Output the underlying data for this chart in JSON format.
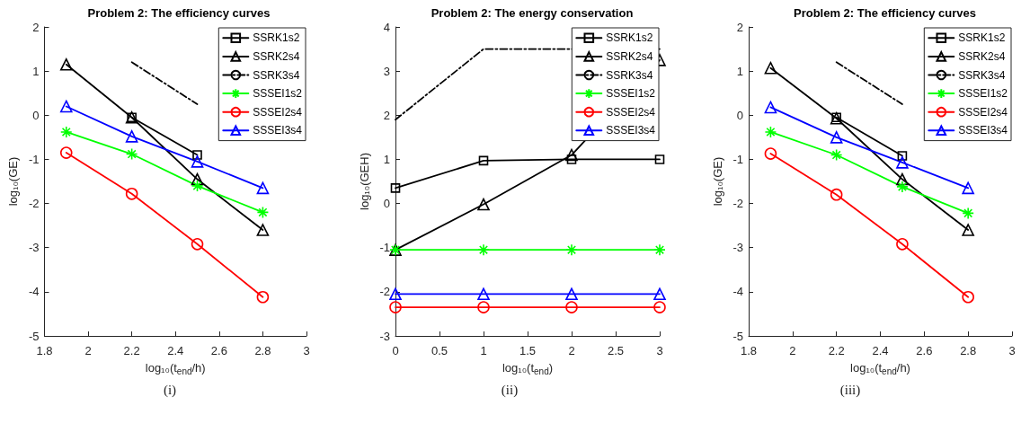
{
  "chart_data": [
    {
      "type": "line",
      "title": "Problem 2: The efficiency curves",
      "xlabel": "log₁₀(t$_{end}$/h)",
      "ylabel": "log₁₀(GE)",
      "x": [
        1.9,
        2.2,
        2.5,
        2.8
      ],
      "xlim": [
        1.8,
        3
      ],
      "xticks": [
        1.8,
        2,
        2.2,
        2.4,
        2.6,
        2.8,
        3
      ],
      "ylim": [
        -5,
        2
      ],
      "yticks": [
        -5,
        -4,
        -3,
        -2,
        -1,
        0,
        1,
        2
      ],
      "grid": false,
      "legend": "top right",
      "annotations": [
        "(i)"
      ],
      "series": [
        {
          "name": "SSRK1s2",
          "color": "#000000",
          "marker": "square",
          "line_style": "solid",
          "values": [
            null,
            -0.05,
            -0.9,
            null
          ]
        },
        {
          "name": "SSRK2s4",
          "color": "#000000",
          "marker": "triangle",
          "line_style": "solid",
          "values": [
            1.15,
            -0.05,
            -1.45,
            -2.6
          ]
        },
        {
          "name": "SSRK3s4",
          "color": "#000000",
          "marker": "none",
          "line_style": "dashed",
          "values": [
            null,
            1.2,
            0.25,
            null
          ]
        },
        {
          "name": "SSSEI1s2",
          "color": "#00ff00",
          "marker": "cross",
          "line_style": "solid",
          "values": [
            -0.38,
            -0.88,
            -1.6,
            -2.2
          ]
        },
        {
          "name": "SSSEI2s4",
          "color": "#ff0000",
          "marker": "circle",
          "line_style": "solid",
          "values": [
            -0.85,
            -1.78,
            -2.92,
            -4.12
          ]
        },
        {
          "name": "SSSEI3s4",
          "color": "#0000ff",
          "marker": "triangle",
          "line_style": "solid",
          "values": [
            0.2,
            -0.48,
            -1.05,
            -1.65
          ]
        }
      ]
    },
    {
      "type": "line",
      "title": "Problem 2: The energy conservation",
      "xlabel": "log₁₀(t$_{end}$)",
      "ylabel": "log₁₀(GEH)",
      "x": [
        0,
        1,
        2,
        3
      ],
      "xlim": [
        0,
        3
      ],
      "xticks": [
        0,
        0.5,
        1,
        1.5,
        2,
        2.5,
        3
      ],
      "ylim": [
        -3,
        4
      ],
      "yticks": [
        -3,
        -2,
        -1,
        0,
        1,
        2,
        3,
        4
      ],
      "grid": false,
      "legend": "top right",
      "annotations": [
        "(ii)"
      ],
      "series": [
        {
          "name": "SSRK1s2",
          "color": "#000000",
          "marker": "square",
          "line_style": "solid",
          "values": [
            0.35,
            0.97,
            1.0,
            1.0
          ]
        },
        {
          "name": "SSRK2s4",
          "color": "#000000",
          "marker": "triangle",
          "line_style": "solid",
          "values": [
            -1.05,
            -0.02,
            1.1,
            3.25
          ]
        },
        {
          "name": "SSRK3s4",
          "color": "#000000",
          "marker": "none",
          "line_style": "dashed",
          "values": [
            1.9,
            3.5,
            3.5,
            3.5
          ]
        },
        {
          "name": "SSSEI1s2",
          "color": "#00ff00",
          "marker": "cross",
          "line_style": "solid",
          "values": [
            -1.05,
            -1.05,
            -1.05,
            -1.05
          ]
        },
        {
          "name": "SSSEI2s4",
          "color": "#ff0000",
          "marker": "circle",
          "line_style": "solid",
          "values": [
            -2.35,
            -2.35,
            -2.35,
            -2.35
          ]
        },
        {
          "name": "SSSEI3s4",
          "color": "#0000ff",
          "marker": "triangle",
          "line_style": "solid",
          "values": [
            -2.05,
            -2.05,
            -2.05,
            -2.05
          ]
        }
      ]
    },
    {
      "type": "line",
      "title": "Problem 2: The efficiency curves",
      "xlabel": "log₁₀(t$_{end}$/h)",
      "ylabel": "log₁₀(GE)",
      "x": [
        1.9,
        2.2,
        2.5,
        2.8
      ],
      "xlim": [
        1.8,
        3
      ],
      "xticks": [
        1.8,
        2,
        2.2,
        2.4,
        2.6,
        2.8,
        3
      ],
      "ylim": [
        -5,
        2
      ],
      "yticks": [
        -5,
        -4,
        -3,
        -2,
        -1,
        0,
        1,
        2
      ],
      "grid": false,
      "legend": "top right",
      "annotations": [
        "(iii)"
      ],
      "series": [
        {
          "name": "SSRK1s2",
          "color": "#000000",
          "marker": "square",
          "line_style": "solid",
          "values": [
            null,
            -0.05,
            -0.92,
            null
          ]
        },
        {
          "name": "SSRK2s4",
          "color": "#000000",
          "marker": "triangle",
          "line_style": "solid",
          "values": [
            1.07,
            -0.07,
            -1.45,
            -2.6
          ]
        },
        {
          "name": "SSRK3s4",
          "color": "#000000",
          "marker": "none",
          "line_style": "dashed",
          "values": [
            null,
            1.2,
            0.25,
            null
          ]
        },
        {
          "name": "SSSEI1s2",
          "color": "#00ff00",
          "marker": "cross",
          "line_style": "solid",
          "values": [
            -0.38,
            -0.9,
            -1.62,
            -2.22
          ]
        },
        {
          "name": "SSSEI2s4",
          "color": "#ff0000",
          "marker": "circle",
          "line_style": "solid",
          "values": [
            -0.87,
            -1.8,
            -2.92,
            -4.12
          ]
        },
        {
          "name": "SSSEI3s4",
          "color": "#0000ff",
          "marker": "triangle",
          "line_style": "solid",
          "values": [
            0.18,
            -0.5,
            -1.07,
            -1.65
          ]
        }
      ]
    }
  ]
}
